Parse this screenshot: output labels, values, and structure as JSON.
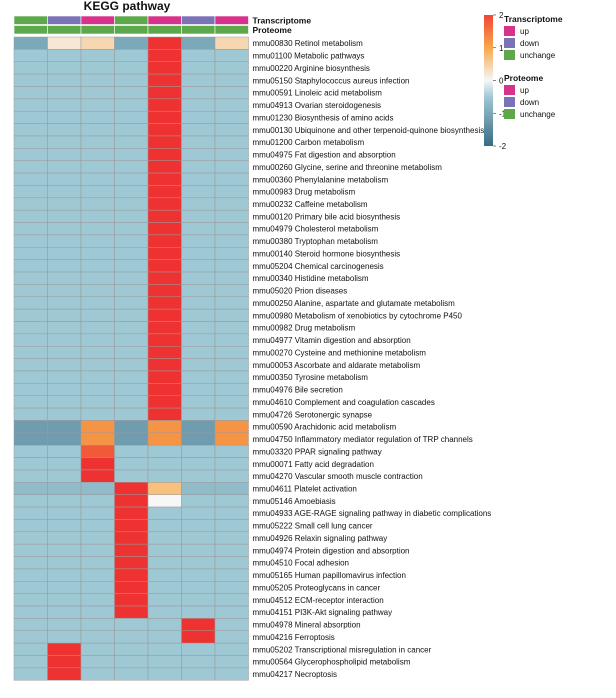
{
  "chart_data": {
    "type": "heatmap",
    "title": "KEGG pathway",
    "annotation_rows": [
      {
        "name": "Transcriptome",
        "values": [
          "unchange",
          "down",
          "up",
          "unchange",
          "up",
          "down",
          "up"
        ]
      },
      {
        "name": "Proteome",
        "values": [
          "unchange",
          "unchange",
          "unchange",
          "unchange",
          "unchange",
          "unchange",
          "unchange"
        ]
      }
    ],
    "rows": [
      "mmu00830 Retinol metabolism",
      "mmu01100 Metabolic pathways",
      "mmu00220 Arginine biosynthesis",
      "mmu05150 Staphylococcus aureus infection",
      "mmu00591 Linoleic acid metabolism",
      "mmu04913 Ovarian steroidogenesis",
      "mmu01230 Biosynthesis of amino acids",
      "mmu00130 Ubiquinone and other terpenoid-quinone biosynthesis",
      "mmu01200 Carbon metabolism",
      "mmu04975 Fat digestion and absorption",
      "mmu00260 Glycine, serine and threonine metabolism",
      "mmu00360 Phenylalanine metabolism",
      "mmu00983 Drug metabolism",
      "mmu00232 Caffeine metabolism",
      "mmu00120 Primary bile acid biosynthesis",
      "mmu04979 Cholesterol metabolism",
      "mmu00380 Tryptophan metabolism",
      "mmu00140 Steroid hormone biosynthesis",
      "mmu05204 Chemical carcinogenesis",
      "mmu00340 Histidine metabolism",
      "mmu05020 Prion diseases",
      "mmu00250 Alanine, aspartate and glutamate metabolism",
      "mmu00980 Metabolism of xenobiotics by cytochrome P450",
      "mmu00982 Drug metabolism",
      "mmu04977 Vitamin digestion and absorption",
      "mmu00270 Cysteine and methionine metabolism",
      "mmu00053 Ascorbate and aldarate metabolism",
      "mmu00350 Tyrosine metabolism",
      "mmu04976 Bile secretion",
      "mmu04610 Complement and coagulation cascades",
      "mmu04726 Serotonergic synapse",
      "mmu00590 Arachidonic acid metabolism",
      "mmu04750 Inflammatory mediator regulation of TRP channels",
      "mmu03320 PPAR signaling pathway",
      "mmu00071 Fatty acid degradation",
      "mmu04270 Vascular smooth muscle contraction",
      "mmu04611 Platelet activation",
      "mmu05146 Amoebiasis",
      "mmu04933 AGE-RAGE signaling pathway in diabetic complications",
      "mmu05222 Small cell lung cancer",
      "mmu04926 Relaxin signaling pathway",
      "mmu04974 Protein digestion and absorption",
      "mmu04510 Focal adhesion",
      "mmu05165 Human papillomavirus infection",
      "mmu05205 Proteoglycans in cancer",
      "mmu04512 ECM-receptor interaction",
      "mmu04151 PI3K-Akt signaling pathway",
      "mmu04978 Mineral absorption",
      "mmu04216 Ferroptosis",
      "mmu05202 Transcriptional misregulation in cancer",
      "mmu00564 Glycerophospholipid metabolism",
      "mmu04217 Necroptosis"
    ],
    "values": [
      [
        -1.0,
        0.2,
        0.4,
        -1.0,
        2.2,
        -1.0,
        0.4
      ],
      [
        -0.5,
        -0.5,
        -0.5,
        -0.5,
        2.2,
        -0.5,
        -0.5
      ],
      [
        -0.5,
        -0.5,
        -0.5,
        -0.5,
        2.2,
        -0.5,
        -0.5
      ],
      [
        -0.5,
        -0.5,
        -0.5,
        -0.5,
        2.2,
        -0.5,
        -0.5
      ],
      [
        -0.5,
        -0.5,
        -0.5,
        -0.5,
        2.2,
        -0.5,
        -0.5
      ],
      [
        -0.5,
        -0.5,
        -0.5,
        -0.5,
        2.2,
        -0.5,
        -0.5
      ],
      [
        -0.5,
        -0.5,
        -0.5,
        -0.5,
        2.2,
        -0.5,
        -0.5
      ],
      [
        -0.5,
        -0.5,
        -0.5,
        -0.5,
        2.2,
        -0.5,
        -0.5
      ],
      [
        -0.5,
        -0.5,
        -0.5,
        -0.5,
        2.2,
        -0.5,
        -0.5
      ],
      [
        -0.5,
        -0.5,
        -0.5,
        -0.5,
        2.2,
        -0.5,
        -0.5
      ],
      [
        -0.5,
        -0.5,
        -0.5,
        -0.5,
        2.2,
        -0.5,
        -0.5
      ],
      [
        -0.5,
        -0.5,
        -0.5,
        -0.5,
        2.2,
        -0.5,
        -0.5
      ],
      [
        -0.5,
        -0.5,
        -0.5,
        -0.5,
        2.2,
        -0.5,
        -0.5
      ],
      [
        -0.5,
        -0.5,
        -0.5,
        -0.5,
        2.2,
        -0.5,
        -0.5
      ],
      [
        -0.5,
        -0.5,
        -0.5,
        -0.5,
        2.2,
        -0.5,
        -0.5
      ],
      [
        -0.5,
        -0.5,
        -0.5,
        -0.5,
        2.2,
        -0.5,
        -0.5
      ],
      [
        -0.5,
        -0.5,
        -0.5,
        -0.5,
        2.2,
        -0.5,
        -0.5
      ],
      [
        -0.5,
        -0.5,
        -0.5,
        -0.5,
        2.2,
        -0.5,
        -0.5
      ],
      [
        -0.5,
        -0.5,
        -0.5,
        -0.5,
        2.2,
        -0.5,
        -0.5
      ],
      [
        -0.5,
        -0.5,
        -0.5,
        -0.5,
        2.2,
        -0.5,
        -0.5
      ],
      [
        -0.5,
        -0.5,
        -0.5,
        -0.5,
        2.2,
        -0.5,
        -0.5
      ],
      [
        -0.5,
        -0.5,
        -0.5,
        -0.5,
        2.2,
        -0.5,
        -0.5
      ],
      [
        -0.5,
        -0.5,
        -0.5,
        -0.5,
        2.2,
        -0.5,
        -0.5
      ],
      [
        -0.5,
        -0.5,
        -0.5,
        -0.5,
        2.2,
        -0.5,
        -0.5
      ],
      [
        -0.5,
        -0.5,
        -0.5,
        -0.5,
        2.2,
        -0.5,
        -0.5
      ],
      [
        -0.5,
        -0.5,
        -0.5,
        -0.5,
        2.2,
        -0.5,
        -0.5
      ],
      [
        -0.5,
        -0.5,
        -0.5,
        -0.5,
        2.2,
        -0.5,
        -0.5
      ],
      [
        -0.5,
        -0.5,
        -0.5,
        -0.5,
        2.2,
        -0.5,
        -0.5
      ],
      [
        -0.5,
        -0.5,
        -0.5,
        -0.5,
        2.2,
        -0.5,
        -0.5
      ],
      [
        -0.5,
        -0.5,
        -0.5,
        -0.5,
        2.2,
        -0.5,
        -0.5
      ],
      [
        -0.5,
        -0.5,
        -0.5,
        -0.5,
        2.2,
        -0.5,
        -0.5
      ],
      [
        -1.2,
        -1.2,
        1.2,
        -1.2,
        1.2,
        -1.2,
        1.2
      ],
      [
        -1.2,
        -1.2,
        1.2,
        -1.2,
        1.2,
        -1.2,
        1.2
      ],
      [
        -0.5,
        -0.5,
        1.8,
        -0.5,
        -0.5,
        -0.5,
        -0.5
      ],
      [
        -0.5,
        -0.5,
        2.2,
        -0.5,
        -0.5,
        -0.5,
        -0.5
      ],
      [
        -0.5,
        -0.5,
        2.2,
        -0.5,
        -0.5,
        -0.5,
        -0.5
      ],
      [
        -0.7,
        -0.7,
        -0.7,
        2.2,
        0.7,
        -0.7,
        -0.7
      ],
      [
        -0.5,
        -0.5,
        -0.5,
        2.2,
        0.0,
        -0.5,
        -0.5
      ],
      [
        -0.5,
        -0.5,
        -0.5,
        2.2,
        -0.5,
        -0.5,
        -0.5
      ],
      [
        -0.5,
        -0.5,
        -0.5,
        2.2,
        -0.5,
        -0.5,
        -0.5
      ],
      [
        -0.5,
        -0.5,
        -0.5,
        2.2,
        -0.5,
        -0.5,
        -0.5
      ],
      [
        -0.5,
        -0.5,
        -0.5,
        2.2,
        -0.5,
        -0.5,
        -0.5
      ],
      [
        -0.5,
        -0.5,
        -0.5,
        2.2,
        -0.5,
        -0.5,
        -0.5
      ],
      [
        -0.5,
        -0.5,
        -0.5,
        2.2,
        -0.5,
        -0.5,
        -0.5
      ],
      [
        -0.5,
        -0.5,
        -0.5,
        2.2,
        -0.5,
        -0.5,
        -0.5
      ],
      [
        -0.5,
        -0.5,
        -0.5,
        2.2,
        -0.5,
        -0.5,
        -0.5
      ],
      [
        -0.5,
        -0.5,
        -0.5,
        2.2,
        -0.5,
        -0.5,
        -0.5
      ],
      [
        -0.5,
        -0.5,
        -0.5,
        -0.5,
        -0.5,
        2.2,
        -0.5
      ],
      [
        -0.5,
        -0.5,
        -0.5,
        -0.5,
        -0.5,
        2.2,
        -0.5
      ],
      [
        -0.5,
        2.2,
        -0.5,
        -0.5,
        -0.5,
        -0.5,
        -0.5
      ],
      [
        -0.5,
        2.2,
        -0.5,
        -0.5,
        -0.5,
        -0.5,
        -0.5
      ],
      [
        -0.5,
        2.2,
        -0.5,
        -0.5,
        -0.5,
        -0.5,
        -0.5
      ]
    ],
    "color_scale": {
      "range": [
        -2,
        2
      ],
      "ticks": [
        2,
        1,
        0,
        -1,
        -2
      ],
      "stops": [
        {
          "value": -2.2,
          "color": "#2b5f7a"
        },
        {
          "value": -0.5,
          "color": "#9ec8d4"
        },
        {
          "value": 0,
          "color": "#f7f7f7"
        },
        {
          "value": 1,
          "color": "#f7a84a"
        },
        {
          "value": 2.2,
          "color": "#ee3231"
        }
      ]
    },
    "annotation_colors": {
      "up": "#d8338a",
      "down": "#7b73b8",
      "unchange": "#5ca84a"
    },
    "legends": [
      {
        "title": "Transcriptome",
        "items": [
          "up",
          "down",
          "unchange"
        ]
      },
      {
        "title": "Proteome",
        "items": [
          "up",
          "down",
          "unchange"
        ]
      }
    ]
  }
}
